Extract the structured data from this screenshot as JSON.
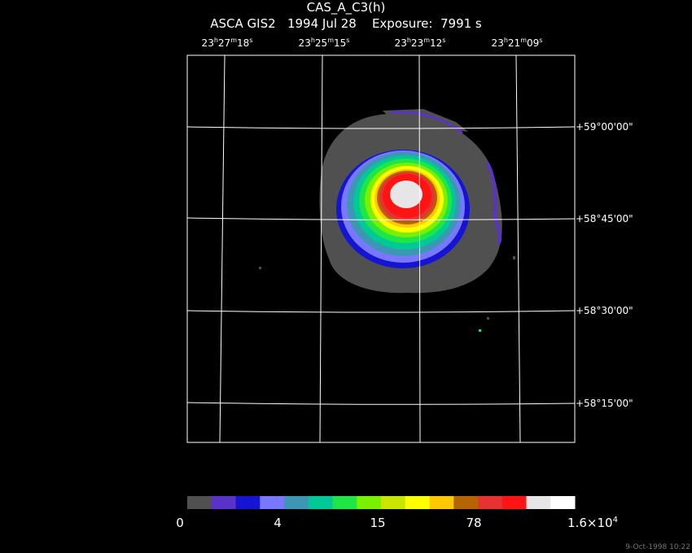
{
  "title": "CAS_A_C3(h)",
  "subtitle": {
    "instrument": "ASCA GIS2",
    "date": "1994 Jul 28",
    "exposure_label": "Exposure:",
    "exposure_value": "7991 s"
  },
  "ra_labels": [
    {
      "h": "23",
      "m": "27",
      "s": "18"
    },
    {
      "h": "23",
      "m": "25",
      "s": "15"
    },
    {
      "h": "23",
      "m": "23",
      "s": "12"
    },
    {
      "h": "23",
      "m": "21",
      "s": "09"
    }
  ],
  "dec_labels": [
    "+59°00'00\"",
    "+58°45'00\"",
    "+58°30'00\"",
    "+58°15'00\""
  ],
  "colorbar": {
    "colors": [
      "#505050",
      "#5a32c8",
      "#1414d2",
      "#7878ff",
      "#3c96b4",
      "#00c896",
      "#1ee646",
      "#78f000",
      "#c8e600",
      "#ffff00",
      "#ffc800",
      "#b46400",
      "#e63232",
      "#ff1414",
      "#e6e6e6",
      "#ffffff"
    ],
    "labels": [
      "0",
      "4",
      "15",
      "78"
    ],
    "max_label_base": "1.6×10",
    "max_label_exp": "4"
  },
  "timestamp": "9-Oct-1998 10:22"
}
